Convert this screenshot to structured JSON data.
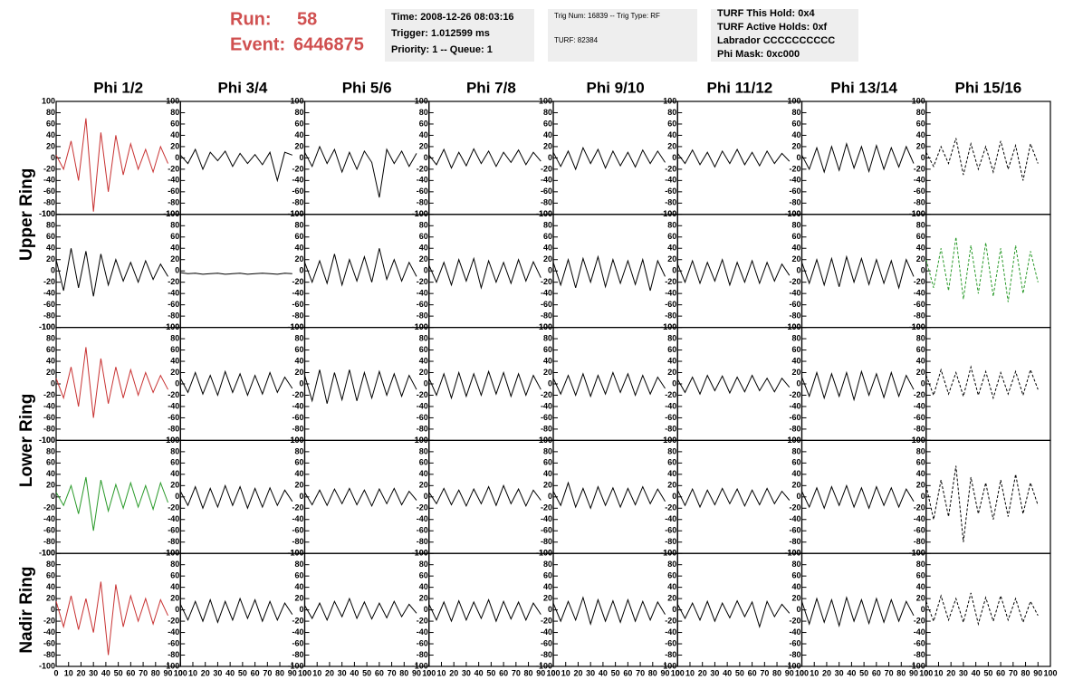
{
  "header": {
    "run_label": "Run:",
    "run": "58",
    "event_label": "Event:",
    "event": "6446875",
    "boxes": [
      [
        "Time: 2008-12-26 08:03:16",
        "Trigger: 1.012599 ms",
        "Priority: 1 -- Queue: 1"
      ],
      [
        "Trig Num: 16839 -- Trig Type: RF",
        "TURF: 82384"
      ],
      [
        "TURF This Hold: 0x4",
        "TURF Active Holds: 0xf",
        "Labrador CCCCCCCCCC",
        "Phi Mask: 0xc000"
      ]
    ]
  },
  "chart_data": {
    "type": "line",
    "columns": [
      "Phi 1/2",
      "Phi 3/4",
      "Phi 5/6",
      "Phi 7/8",
      "Phi 9/10",
      "Phi 11/12",
      "Phi 13/14",
      "Phi 15/16"
    ],
    "ring_labels": [
      "Upper Ring",
      "Lower Ring",
      "Nadir Ring"
    ],
    "x": [
      0,
      6,
      12,
      18,
      24,
      30,
      36,
      42,
      48,
      54,
      60,
      66,
      72,
      78,
      84,
      90
    ],
    "xlim": [
      0,
      100
    ],
    "xticks": [
      0,
      10,
      20,
      30,
      40,
      50,
      60,
      70,
      80,
      90,
      100
    ],
    "ylim": [
      -100,
      100
    ],
    "yticks": [
      -100,
      -80,
      -60,
      -40,
      -20,
      0,
      20,
      40,
      60,
      80,
      100
    ],
    "panels": [
      [
        {
          "color": "#c83232",
          "values": [
            5,
            -20,
            30,
            -40,
            70,
            -95,
            45,
            -60,
            40,
            -30,
            25,
            -20,
            15,
            -25,
            20,
            -10
          ]
        },
        {
          "color": "#000000",
          "values": [
            5,
            -10,
            15,
            -20,
            10,
            -5,
            12,
            -15,
            8,
            -10,
            6,
            -12,
            10,
            -40,
            10,
            5
          ]
        },
        {
          "color": "#000000",
          "values": [
            10,
            -15,
            20,
            -10,
            15,
            -25,
            10,
            -20,
            12,
            -8,
            -70,
            15,
            -10,
            12,
            -15,
            8
          ]
        },
        {
          "color": "#000000",
          "values": [
            5,
            -12,
            15,
            -18,
            10,
            -14,
            16,
            -10,
            12,
            -15,
            10,
            -8,
            14,
            -12,
            10,
            -6
          ]
        },
        {
          "color": "#000000",
          "values": [
            10,
            -15,
            12,
            -20,
            18,
            -10,
            15,
            -18,
            12,
            -14,
            10,
            -16,
            14,
            -10,
            12,
            -8
          ]
        },
        {
          "color": "#000000",
          "values": [
            8,
            -10,
            14,
            -12,
            10,
            -16,
            12,
            -10,
            15,
            -12,
            10,
            -14,
            12,
            -10,
            8,
            -6
          ]
        },
        {
          "color": "#000000",
          "values": [
            5,
            -20,
            18,
            -25,
            20,
            -22,
            25,
            -18,
            20,
            -24,
            22,
            -20,
            18,
            -16,
            20,
            -10
          ]
        },
        {
          "color": "#000000",
          "dashed": true,
          "values": [
            10,
            -15,
            20,
            -10,
            35,
            -30,
            25,
            -20,
            20,
            -25,
            30,
            -20,
            22,
            -40,
            25,
            -10
          ]
        }
      ],
      [
        {
          "color": "#000000",
          "values": [
            20,
            -35,
            40,
            -30,
            35,
            -45,
            30,
            -25,
            20,
            -18,
            15,
            -20,
            18,
            -15,
            12,
            -10
          ]
        },
        {
          "color": "#000000",
          "values": [
            -3,
            -5,
            -4,
            -6,
            -5,
            -4,
            -6,
            -5,
            -4,
            -6,
            -5,
            -4,
            -5,
            -6,
            -4,
            -5
          ]
        },
        {
          "color": "#000000",
          "values": [
            15,
            -20,
            18,
            -22,
            30,
            -25,
            20,
            -18,
            25,
            -20,
            40,
            -15,
            20,
            -18,
            15,
            -10
          ]
        },
        {
          "color": "#000000",
          "values": [
            10,
            -20,
            15,
            -25,
            20,
            -18,
            22,
            -30,
            18,
            -20,
            15,
            -22,
            20,
            -18,
            16,
            -12
          ]
        },
        {
          "color": "#000000",
          "values": [
            15,
            -25,
            20,
            -30,
            22,
            -20,
            25,
            -28,
            20,
            -22,
            18,
            -24,
            20,
            -35,
            18,
            -10
          ]
        },
        {
          "color": "#000000",
          "values": [
            12,
            -20,
            18,
            -22,
            15,
            -18,
            20,
            -25,
            15,
            -20,
            18,
            -22,
            15,
            -18,
            12,
            -8
          ]
        },
        {
          "color": "#000000",
          "values": [
            15,
            -22,
            20,
            -25,
            22,
            -28,
            25,
            -20,
            22,
            -24,
            20,
            -22,
            18,
            -30,
            20,
            -10
          ]
        },
        {
          "color": "#2a9a2a",
          "dashed": true,
          "values": [
            20,
            -30,
            40,
            -35,
            60,
            -50,
            45,
            -40,
            50,
            -45,
            40,
            -55,
            45,
            -40,
            35,
            -20
          ]
        }
      ],
      [
        {
          "color": "#c83232",
          "values": [
            10,
            -25,
            30,
            -40,
            65,
            -60,
            45,
            -35,
            30,
            -25,
            25,
            -20,
            20,
            -15,
            15,
            -10
          ]
        },
        {
          "color": "#000000",
          "values": [
            10,
            -15,
            20,
            -18,
            15,
            -20,
            22,
            -15,
            18,
            -20,
            15,
            -18,
            20,
            -15,
            12,
            -8
          ]
        },
        {
          "color": "#000000",
          "values": [
            15,
            -30,
            25,
            -35,
            20,
            -28,
            25,
            -30,
            20,
            -25,
            22,
            -20,
            18,
            -22,
            15,
            -10
          ]
        },
        {
          "color": "#000000",
          "values": [
            10,
            -20,
            18,
            -25,
            20,
            -22,
            18,
            -20,
            22,
            -18,
            20,
            -22,
            18,
            -20,
            15,
            -10
          ]
        },
        {
          "color": "#000000",
          "values": [
            10,
            -18,
            15,
            -20,
            18,
            -22,
            15,
            -18,
            20,
            -15,
            18,
            -20,
            15,
            -18,
            12,
            -8
          ]
        },
        {
          "color": "#000000",
          "values": [
            8,
            -15,
            12,
            -18,
            15,
            -12,
            14,
            -16,
            12,
            -14,
            15,
            -12,
            10,
            -14,
            10,
            -6
          ]
        },
        {
          "color": "#000000",
          "values": [
            12,
            -22,
            20,
            -25,
            18,
            -22,
            20,
            -28,
            22,
            -20,
            18,
            -24,
            20,
            -22,
            15,
            -10
          ]
        },
        {
          "color": "#000000",
          "dashed": true,
          "values": [
            15,
            -20,
            25,
            -18,
            20,
            -22,
            30,
            -20,
            22,
            -25,
            20,
            -18,
            22,
            -20,
            25,
            -10
          ]
        }
      ],
      [
        {
          "color": "#2a9a2a",
          "values": [
            8,
            -15,
            20,
            -30,
            35,
            -60,
            30,
            -25,
            22,
            -20,
            25,
            -18,
            20,
            -22,
            25,
            -10
          ]
        },
        {
          "color": "#000000",
          "values": [
            10,
            -15,
            18,
            -20,
            15,
            -18,
            20,
            -15,
            18,
            -20,
            15,
            -18,
            16,
            -15,
            12,
            -8
          ]
        },
        {
          "color": "#000000",
          "values": [
            8,
            -14,
            12,
            -15,
            14,
            -12,
            15,
            -14,
            12,
            -16,
            14,
            -12,
            15,
            -14,
            10,
            -6
          ]
        },
        {
          "color": "#000000",
          "values": [
            8,
            -12,
            15,
            -14,
            12,
            -16,
            14,
            -12,
            18,
            -15,
            20,
            -12,
            14,
            -16,
            12,
            -6
          ]
        },
        {
          "color": "#000000",
          "values": [
            10,
            -15,
            25,
            -18,
            15,
            -20,
            18,
            -15,
            16,
            -18,
            15,
            -14,
            18,
            -12,
            14,
            -8
          ]
        },
        {
          "color": "#000000",
          "values": [
            12,
            -15,
            14,
            -18,
            12,
            -14,
            15,
            -12,
            14,
            -16,
            12,
            -14,
            15,
            -12,
            10,
            -6
          ]
        },
        {
          "color": "#000000",
          "values": [
            10,
            -18,
            16,
            -20,
            18,
            -15,
            20,
            -18,
            16,
            -20,
            18,
            -15,
            16,
            -18,
            14,
            -8
          ]
        },
        {
          "color": "#000000",
          "dashed": true,
          "values": [
            20,
            -40,
            30,
            -35,
            55,
            -80,
            35,
            -30,
            25,
            -40,
            30,
            -35,
            40,
            -30,
            25,
            -15
          ]
        }
      ],
      [
        {
          "color": "#c83232",
          "values": [
            15,
            -30,
            25,
            -35,
            20,
            -40,
            50,
            -80,
            45,
            -30,
            25,
            -20,
            20,
            -25,
            18,
            -10
          ]
        },
        {
          "color": "#000000",
          "values": [
            10,
            -18,
            15,
            -20,
            18,
            -22,
            15,
            -18,
            20,
            -15,
            18,
            -20,
            15,
            -18,
            12,
            -8
          ]
        },
        {
          "color": "#000000",
          "values": [
            8,
            -15,
            12,
            -18,
            15,
            -12,
            20,
            -15,
            14,
            -16,
            12,
            -14,
            15,
            -12,
            10,
            -6
          ]
        },
        {
          "color": "#000000",
          "values": [
            10,
            -18,
            14,
            -20,
            16,
            -18,
            14,
            -15,
            18,
            -20,
            15,
            -16,
            14,
            -18,
            12,
            -8
          ]
        },
        {
          "color": "#000000",
          "values": [
            12,
            -20,
            15,
            -18,
            22,
            -25,
            18,
            -20,
            16,
            -22,
            18,
            -20,
            15,
            -18,
            14,
            -8
          ]
        },
        {
          "color": "#000000",
          "values": [
            10,
            -15,
            12,
            -18,
            15,
            -20,
            12,
            -14,
            16,
            -12,
            14,
            -30,
            15,
            -12,
            10,
            -6
          ]
        },
        {
          "color": "#000000",
          "values": [
            15,
            -25,
            20,
            -22,
            18,
            -28,
            22,
            -20,
            18,
            -24,
            20,
            -22,
            18,
            -20,
            15,
            -10
          ]
        },
        {
          "color": "#000000",
          "dashed": true,
          "values": [
            15,
            -20,
            25,
            -18,
            20,
            -22,
            30,
            -25,
            22,
            -20,
            25,
            -18,
            20,
            -22,
            15,
            -10
          ]
        }
      ]
    ]
  }
}
